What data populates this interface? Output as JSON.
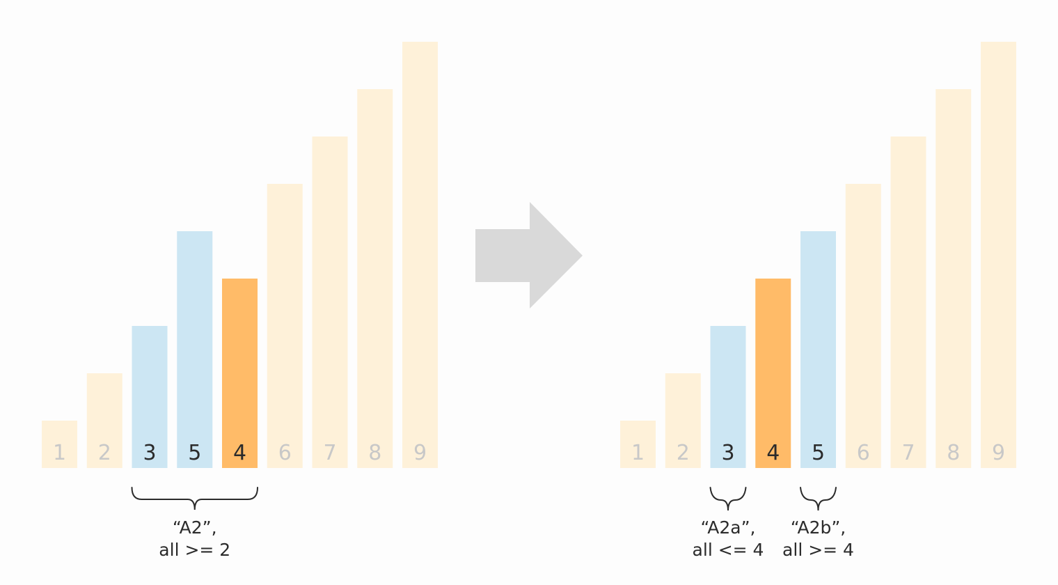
{
  "colors": {
    "background": "#fdfdfd",
    "dimmed_bar": "#fef1d9",
    "dimmed_text": "#c8c8c8",
    "partition_bar": "#cce6f3",
    "pivot_bar": "#ffbb68",
    "active_text": "#2b2b2b",
    "arrow": "#d9d9d9",
    "brace": "#2b2b2b"
  },
  "chart_data": [
    {
      "type": "bar",
      "panel": "before",
      "categories": [
        "1",
        "2",
        "3",
        "5",
        "4",
        "6",
        "7",
        "8",
        "9"
      ],
      "values": [
        1,
        2,
        3,
        5,
        4,
        6,
        7,
        8,
        9
      ],
      "states": [
        "dim",
        "dim",
        "range",
        "range",
        "pivot",
        "dim",
        "dim",
        "dim",
        "dim"
      ],
      "groups": [
        {
          "from": 2,
          "to": 4,
          "line1": "“A2”,",
          "line2": "all >= 2"
        }
      ]
    },
    {
      "type": "bar",
      "panel": "after",
      "categories": [
        "1",
        "2",
        "3",
        "4",
        "5",
        "6",
        "7",
        "8",
        "9"
      ],
      "values": [
        1,
        2,
        3,
        4,
        5,
        6,
        7,
        8,
        9
      ],
      "states": [
        "dim",
        "dim",
        "range",
        "pivot",
        "range",
        "dim",
        "dim",
        "dim",
        "dim"
      ],
      "groups": [
        {
          "from": 2,
          "to": 2,
          "line1": "“A2a”,",
          "line2": "all <= 4"
        },
        {
          "from": 4,
          "to": 4,
          "line1": "“A2b”,",
          "line2": "all >= 4"
        }
      ]
    }
  ],
  "arrow": {
    "icon": "right-arrow-icon"
  }
}
